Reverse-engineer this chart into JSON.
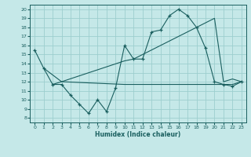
{
  "xlabel": "Humidex (Indice chaleur)",
  "bg_color": "#c5e8e8",
  "line_color": "#1a5f5f",
  "grid_color": "#9dcece",
  "xlim": [
    -0.5,
    23.5
  ],
  "ylim": [
    7.5,
    20.5
  ],
  "yticks": [
    8,
    9,
    10,
    11,
    12,
    13,
    14,
    15,
    16,
    17,
    18,
    19,
    20
  ],
  "xticks": [
    0,
    1,
    2,
    3,
    4,
    5,
    6,
    7,
    8,
    9,
    10,
    11,
    12,
    13,
    14,
    15,
    16,
    17,
    18,
    19,
    20,
    21,
    22,
    23
  ],
  "line1_x": [
    0,
    1,
    2,
    3,
    4,
    5,
    6,
    7,
    8,
    9,
    10,
    11,
    12,
    13,
    14,
    15,
    16,
    17,
    18,
    19,
    20,
    21,
    22,
    23
  ],
  "line1_y": [
    15.5,
    13.5,
    11.7,
    11.7,
    10.5,
    9.5,
    8.5,
    10.0,
    8.7,
    11.3,
    16.0,
    14.5,
    14.5,
    17.5,
    17.7,
    19.3,
    20.0,
    19.3,
    18.0,
    15.7,
    12.0,
    11.7,
    11.5,
    12.0
  ],
  "line2_x": [
    1,
    3,
    10,
    11,
    12,
    13,
    14,
    15,
    16,
    17,
    18,
    20,
    21,
    22,
    23
  ],
  "line2_y": [
    13.5,
    12.0,
    14.3,
    14.5,
    15.0,
    15.5,
    16.0,
    16.5,
    17.0,
    17.5,
    18.0,
    19.0,
    12.0,
    12.3,
    12.0
  ],
  "line3_x": [
    2,
    3,
    10,
    11,
    12,
    13,
    14,
    15,
    16,
    17,
    18,
    19,
    20,
    21,
    22,
    23
  ],
  "line3_y": [
    11.7,
    12.0,
    11.7,
    11.7,
    11.7,
    11.7,
    11.7,
    11.7,
    11.7,
    11.7,
    11.7,
    11.7,
    11.7,
    11.7,
    11.7,
    12.0
  ],
  "label_fontsize": 5.5,
  "tick_fontsize": 4.5
}
